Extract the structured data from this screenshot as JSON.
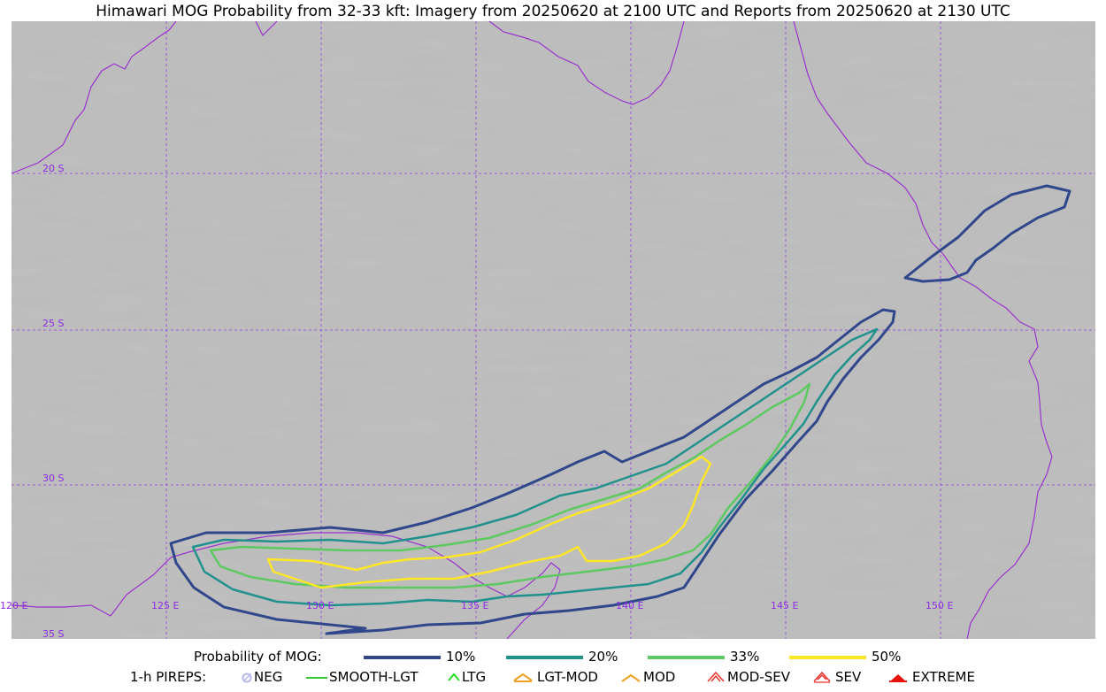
{
  "title": "Himawari MOG Probability from 32-33 kft: Imagery from 20250620 at 2100 UTC and Reports from 20250620 at 2130 UTC",
  "map": {
    "lat_labels": [
      "20 S",
      "25 S",
      "30 S",
      "35 S"
    ],
    "lon_labels": [
      "120 E",
      "125 E",
      "130 E",
      "135 E",
      "140 E",
      "145 E",
      "150 E"
    ],
    "gridline_color": "#8a2be2",
    "coastline_color": "#9932cc"
  },
  "legend_probability": {
    "label": "Probability of MOG:",
    "items": [
      {
        "label": "10%",
        "color": "#31478b"
      },
      {
        "label": "20%",
        "color": "#21918c"
      },
      {
        "label": "33%",
        "color": "#5ec962"
      },
      {
        "label": "50%",
        "color": "#fde725"
      }
    ]
  },
  "legend_pireps": {
    "label": "1-h PIREPS:",
    "items": [
      {
        "label": "NEG",
        "color": "#b8b8f0",
        "icon": "neg-icon"
      },
      {
        "label": "SMOOTH-LGT",
        "color": "#33cc33",
        "icon": "smooth-lgt-icon"
      },
      {
        "label": "LTG",
        "color": "#22dd22",
        "icon": "ltg-icon"
      },
      {
        "label": "LGT-MOD",
        "color": "#f0a020",
        "icon": "lgt-mod-icon"
      },
      {
        "label": "MOD",
        "color": "#f0a020",
        "icon": "mod-icon"
      },
      {
        "label": "MOD-SEV",
        "color": "#e8312a",
        "icon": "mod-sev-icon"
      },
      {
        "label": "SEV",
        "color": "#e8312a",
        "icon": "sev-icon"
      },
      {
        "label": "EXTREME",
        "color": "#e8120c",
        "icon": "extreme-icon"
      }
    ]
  }
}
